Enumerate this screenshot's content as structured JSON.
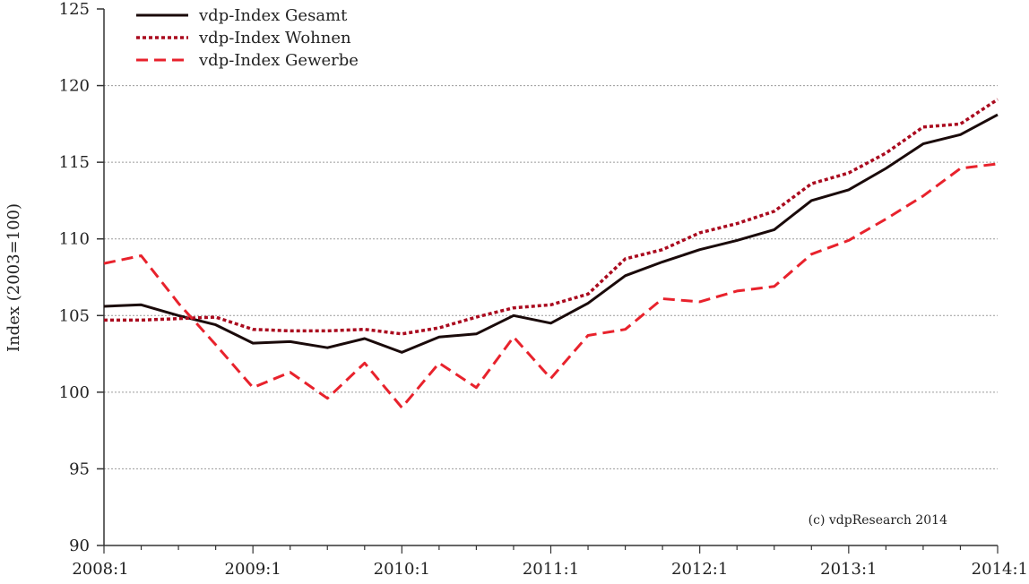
{
  "chart_data": {
    "type": "line",
    "title": "",
    "xlabel": "",
    "ylabel": "Index (2003=100)",
    "credit": "(c) vdpResearch 2014",
    "ylim": [
      90,
      125
    ],
    "yticks": [
      90,
      95,
      100,
      105,
      110,
      115,
      120,
      125
    ],
    "grid": true,
    "legend_position": "top-left",
    "x": [
      "2008:1",
      "2008:2",
      "2008:3",
      "2008:4",
      "2009:1",
      "2009:2",
      "2009:3",
      "2009:4",
      "2010:1",
      "2010:2",
      "2010:3",
      "2010:4",
      "2011:1",
      "2011:2",
      "2011:3",
      "2011:4",
      "2012:1",
      "2012:2",
      "2012:3",
      "2012:4",
      "2013:1",
      "2013:2",
      "2013:3",
      "2013:4",
      "2014:1"
    ],
    "xtick_labels": [
      "2008:1",
      "2009:1",
      "2010:1",
      "2011:1",
      "2012:1",
      "2013:1",
      "2014:1"
    ],
    "series": [
      {
        "name": "vdp-Index Gesamt",
        "color": "#1a0a0a",
        "style": "solid",
        "values": [
          105.6,
          105.7,
          105.0,
          104.4,
          103.2,
          103.3,
          102.9,
          103.5,
          102.6,
          103.6,
          103.8,
          105.0,
          104.5,
          105.8,
          107.6,
          108.5,
          109.3,
          109.9,
          110.6,
          112.5,
          113.2,
          114.6,
          116.2,
          116.8,
          118.1
        ]
      },
      {
        "name": "vdp-Index Wohnen",
        "color": "#aa0a1e",
        "style": "dotted",
        "values": [
          104.7,
          104.7,
          104.8,
          104.9,
          104.1,
          104.0,
          104.0,
          104.1,
          103.8,
          104.2,
          104.9,
          105.5,
          105.7,
          106.4,
          108.7,
          109.3,
          110.4,
          111.0,
          111.8,
          113.6,
          114.3,
          115.6,
          117.3,
          117.5,
          119.1
        ]
      },
      {
        "name": "vdp-Index Gewerbe",
        "color": "#e8222c",
        "style": "dashed",
        "values": [
          108.4,
          108.9,
          105.8,
          103.1,
          100.3,
          101.3,
          99.6,
          101.9,
          99.0,
          101.9,
          100.3,
          103.6,
          100.9,
          103.7,
          104.1,
          106.1,
          105.9,
          106.6,
          106.9,
          109.0,
          109.9,
          111.3,
          112.8,
          114.6,
          114.9
        ]
      }
    ]
  }
}
